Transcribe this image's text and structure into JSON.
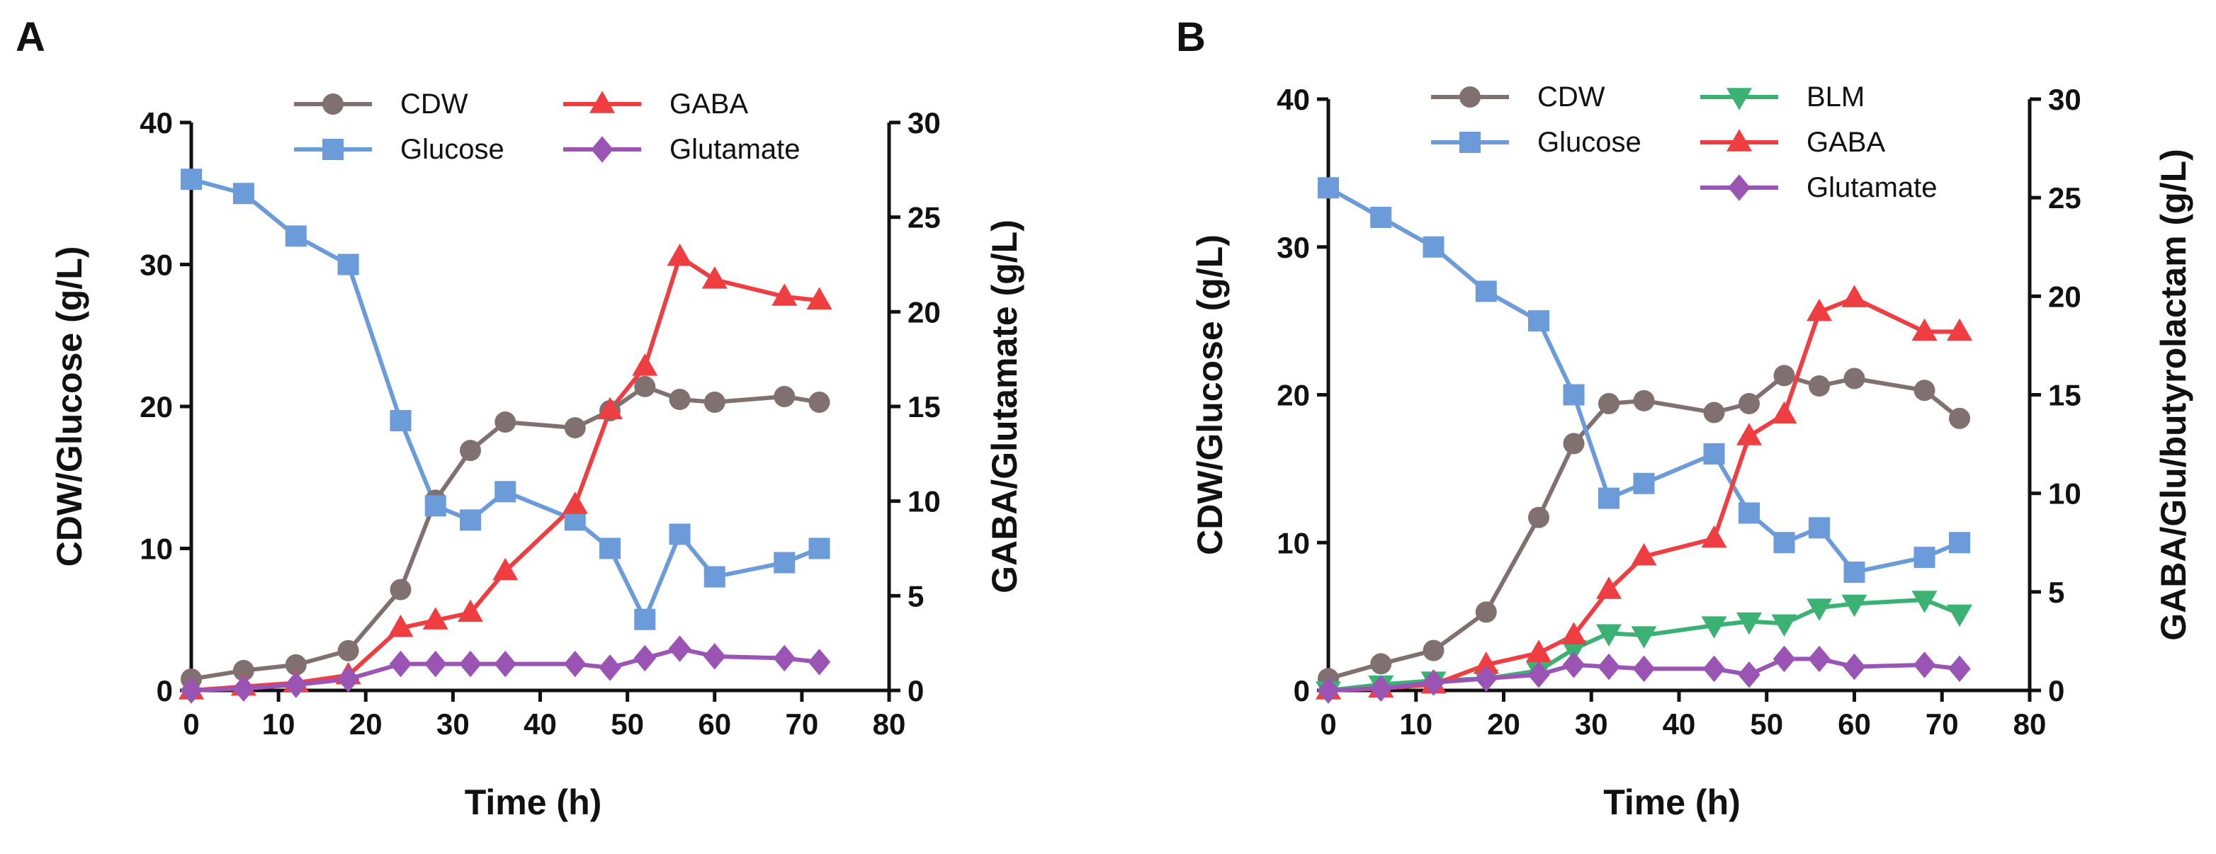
{
  "chart_data": [
    {
      "type": "line",
      "panel": "A",
      "xlabel": "Time (h)",
      "ylabel_left": "CDW/Glucose (g/L)",
      "ylabel_right": "GABA/Glutamate (g/L)",
      "xlim": [
        0,
        80
      ],
      "ylim_left": [
        0,
        40
      ],
      "ylim_right": [
        0,
        30
      ],
      "xticks": [
        "0",
        "10",
        "20",
        "30",
        "40",
        "50",
        "60",
        "70",
        "80"
      ],
      "yticks_left": [
        "0",
        "10",
        "20",
        "30",
        "40"
      ],
      "yticks_right": [
        "0",
        "5",
        "10",
        "15",
        "20",
        "25",
        "30"
      ],
      "series": [
        {
          "name": "CDW",
          "axis": "left",
          "color": "#807170",
          "marker": "circle",
          "x": [
            0,
            6,
            12,
            18,
            24,
            28,
            32,
            36,
            44,
            48,
            52,
            56,
            60,
            68,
            72
          ],
          "y": [
            0.8,
            1.4,
            1.8,
            2.8,
            7.1,
            13.4,
            16.9,
            18.9,
            18.5,
            19.7,
            21.4,
            20.5,
            20.3,
            20.7,
            20.3
          ]
        },
        {
          "name": "Glucose",
          "axis": "left",
          "color": "#6b9bd8",
          "marker": "square",
          "x": [
            0,
            6,
            12,
            18,
            24,
            28,
            32,
            36,
            44,
            48,
            52,
            56,
            60,
            68,
            72
          ],
          "y": [
            36,
            35,
            32,
            30,
            19,
            13,
            12,
            14,
            12,
            10,
            5,
            11,
            8,
            9,
            10
          ]
        },
        {
          "name": "GABA",
          "axis": "right",
          "color": "#ef3e42",
          "marker": "triangle-up",
          "x": [
            0,
            6,
            12,
            18,
            24,
            28,
            32,
            36,
            44,
            48,
            52,
            56,
            60,
            68,
            72
          ],
          "y": [
            0,
            0.2,
            0.4,
            0.8,
            3.3,
            3.7,
            4.1,
            6.3,
            9.8,
            14.8,
            17.1,
            22.9,
            21.7,
            20.8,
            20.6
          ]
        },
        {
          "name": "Glutamate",
          "axis": "right",
          "color": "#9a54b4",
          "marker": "diamond",
          "x": [
            0,
            6,
            12,
            18,
            24,
            28,
            32,
            36,
            44,
            48,
            52,
            56,
            60,
            68,
            72
          ],
          "y": [
            0,
            0.1,
            0.3,
            0.6,
            1.4,
            1.4,
            1.4,
            1.4,
            1.4,
            1.2,
            1.7,
            2.2,
            1.8,
            1.7,
            1.5
          ]
        }
      ]
    },
    {
      "type": "line",
      "panel": "B",
      "xlabel": "Time (h)",
      "ylabel_left": "CDW/Glucose (g/L)",
      "ylabel_right": "GABA/Glu/butyrolactam (g/L)",
      "xlim": [
        0,
        80
      ],
      "ylim_left": [
        0,
        40
      ],
      "ylim_right": [
        0,
        30
      ],
      "xticks": [
        "0",
        "10",
        "20",
        "30",
        "40",
        "50",
        "60",
        "70",
        "80"
      ],
      "yticks_left": [
        "0",
        "10",
        "20",
        "30",
        "40"
      ],
      "yticks_right": [
        "0",
        "5",
        "10",
        "15",
        "20",
        "25",
        "30"
      ],
      "series": [
        {
          "name": "CDW",
          "axis": "left",
          "color": "#807170",
          "marker": "circle",
          "x": [
            0,
            6,
            12,
            18,
            24,
            28,
            32,
            36,
            44,
            48,
            52,
            56,
            60,
            68,
            72
          ],
          "y": [
            0.8,
            1.8,
            2.7,
            5.3,
            11.7,
            16.7,
            19.4,
            19.6,
            18.8,
            19.4,
            21.3,
            20.6,
            21.1,
            20.3,
            18.4
          ]
        },
        {
          "name": "Glucose",
          "axis": "left",
          "color": "#6b9bd8",
          "marker": "square",
          "x": [
            0,
            6,
            12,
            18,
            24,
            28,
            32,
            36,
            44,
            48,
            52,
            56,
            60,
            68,
            72
          ],
          "y": [
            34,
            32,
            30,
            27,
            25,
            20,
            13,
            14,
            16,
            12,
            10,
            11,
            8,
            9,
            10
          ]
        },
        {
          "name": "BLM",
          "axis": "right",
          "color": "#3bb273",
          "marker": "triangle-down",
          "x": [
            0,
            6,
            12,
            18,
            24,
            28,
            32,
            36,
            44,
            48,
            52,
            56,
            60,
            68,
            72
          ],
          "y": [
            0,
            0.3,
            0.5,
            0.6,
            1.0,
            2.1,
            2.9,
            2.8,
            3.3,
            3.5,
            3.4,
            4.2,
            4.4,
            4.6,
            3.9
          ]
        },
        {
          "name": "GABA",
          "axis": "right",
          "color": "#ef3e42",
          "marker": "triangle-up",
          "x": [
            0,
            6,
            12,
            18,
            24,
            28,
            32,
            36,
            44,
            48,
            52,
            56,
            60,
            68,
            72
          ],
          "y": [
            0,
            0.1,
            0.3,
            1.3,
            1.9,
            2.8,
            5.1,
            6.8,
            7.7,
            12.9,
            14.0,
            19.2,
            19.9,
            18.2,
            18.2
          ]
        },
        {
          "name": "Glutamate",
          "axis": "right",
          "color": "#9a54b4",
          "marker": "diamond",
          "x": [
            0,
            6,
            12,
            18,
            24,
            28,
            32,
            36,
            44,
            48,
            52,
            56,
            60,
            68,
            72
          ],
          "y": [
            0,
            0.1,
            0.4,
            0.6,
            0.8,
            1.3,
            1.2,
            1.1,
            1.1,
            0.8,
            1.6,
            1.6,
            1.2,
            1.3,
            1.1
          ]
        }
      ]
    }
  ]
}
